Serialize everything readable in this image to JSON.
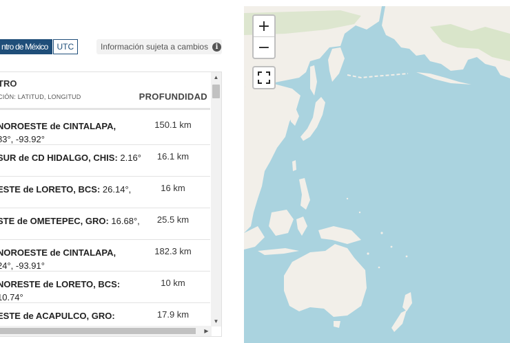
{
  "timezone": {
    "active_label": "ntro de México",
    "utc_label": "UTC"
  },
  "notice": {
    "text": "Información sujeta a cambios",
    "icon": "info-icon"
  },
  "table": {
    "header": {
      "center": "TRO",
      "sub": "CIÓN: LATITUD, LONGITUD",
      "depth": "PROFUNDIDAD"
    },
    "rows": [
      {
        "place": "NOROESTE de CINTALAPA,",
        "coords": "83°, -93.92°",
        "depth": "150.1 km"
      },
      {
        "place": "SUR de CD HIDALGO, CHIS:",
        "coords": "2.16°",
        "depth": "16.1 km"
      },
      {
        "place": "ESTE de LORETO, BCS:",
        "coords": "26.14°,",
        "depth": "16 km"
      },
      {
        "place": "STE de OMETEPEC, GRO:",
        "coords": "16.68°,",
        "depth": "25.5 km"
      },
      {
        "place": "NOROESTE de CINTALAPA,",
        "coords": "24°, -93.91°",
        "depth": "182.3 km"
      },
      {
        "place": "NORESTE de LORETO, BCS:",
        "coords": "10.74°",
        "depth": "10 km"
      },
      {
        "place": "ESTE de ACAPULCO, GRO:",
        "coords": "",
        "depth": "17.9 km"
      }
    ]
  },
  "map": {
    "zoom_in": "+",
    "zoom_out": "−",
    "colors": {
      "water": "#aad3df",
      "land": "#f2efe9",
      "vegetation": "#c8ddb5",
      "ice": "#ffffff"
    }
  }
}
